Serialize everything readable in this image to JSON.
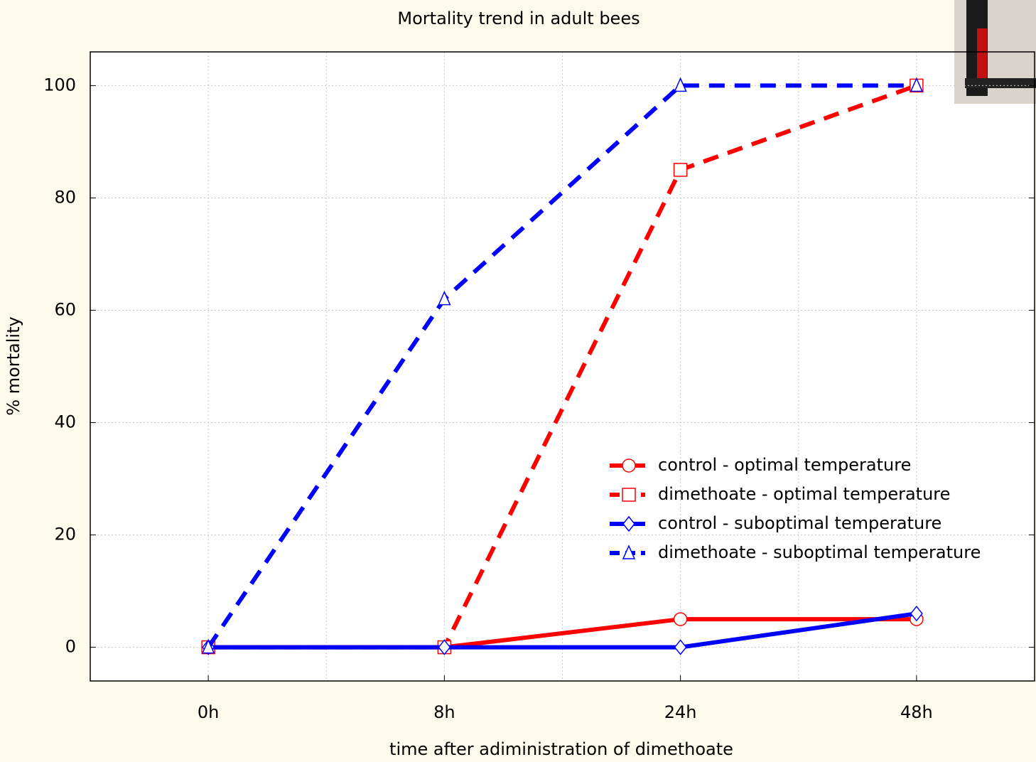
{
  "chart_data": {
    "type": "line",
    "title": "Mortality trend in adult bees",
    "x_label": "time after adiministration of dimethoate",
    "y_label": "% mortality",
    "categories": [
      "0h",
      "8h",
      "24h",
      "48h"
    ],
    "series": [
      {
        "name": "control - optimal temperature",
        "color": "#ff0000",
        "dash": false,
        "marker": "circle",
        "values": [
          0,
          0,
          5,
          5
        ]
      },
      {
        "name": "dimethoate - optimal temperature",
        "color": "#ff0000",
        "dash": true,
        "marker": "square",
        "values": [
          0,
          0,
          85,
          100
        ]
      },
      {
        "name": "control - suboptimal temperature",
        "color": "#0000ff",
        "dash": false,
        "marker": "diamond",
        "values": [
          0,
          0,
          0,
          6
        ]
      },
      {
        "name": "dimethoate - suboptimal temperature",
        "color": "#0000ff",
        "dash": true,
        "marker": "triangle",
        "values": [
          0,
          62,
          100,
          100
        ]
      }
    ],
    "ylim": [
      -6,
      106
    ],
    "yticks": [
      0,
      20,
      40,
      60,
      80,
      100
    ],
    "grid": true
  }
}
